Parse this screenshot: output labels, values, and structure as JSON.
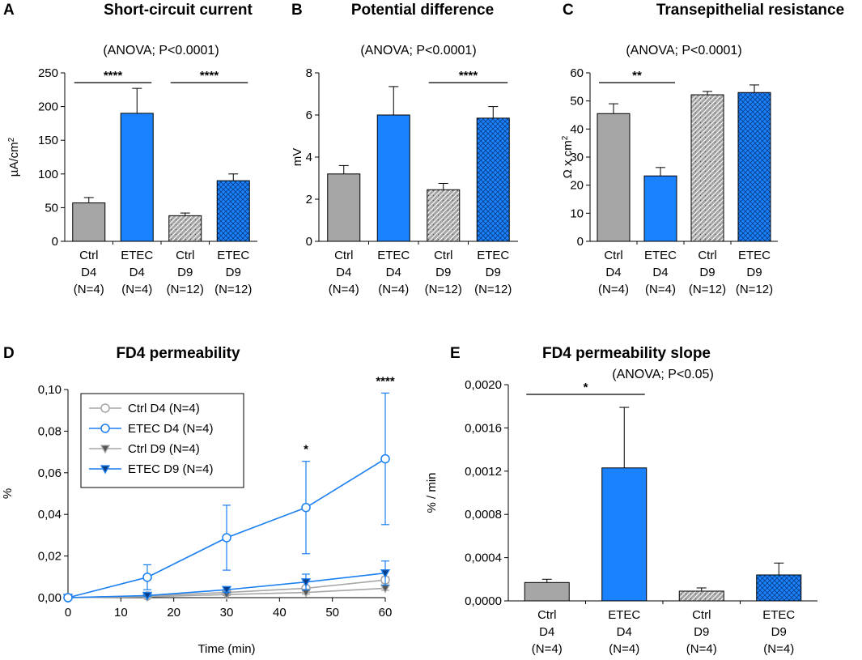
{
  "colors": {
    "ctrl": "#a6a6a6",
    "etec": "#1a82ff",
    "ctrl_line": "#a6a6a6",
    "etec_line": "#1a7ff0",
    "dark": "#2b2b2b"
  },
  "chart_data": [
    {
      "id": "A",
      "panel_label": "A",
      "type": "bar",
      "title": "Short-circuit current",
      "annotation": "(ANOVA; P<0.0001)",
      "ylabel": "µA/cm",
      "ylabel_sup": "2",
      "ylim": [
        0,
        250
      ],
      "yticks": [
        "0",
        "50",
        "100",
        "150",
        "200",
        "250"
      ],
      "yticks_values": [
        0,
        50,
        100,
        150,
        200,
        250
      ],
      "categories": [
        [
          "Ctrl",
          "D4",
          "(N=4)"
        ],
        [
          "ETEC",
          "D4",
          "(N=4)"
        ],
        [
          "Ctrl",
          "D9",
          "(N=12)"
        ],
        [
          "ETEC",
          "D9",
          "(N=12)"
        ]
      ],
      "values": [
        57,
        190,
        38,
        90
      ],
      "errors": [
        8,
        37,
        4,
        10
      ],
      "fill": [
        "solid-gray",
        "solid-blue",
        "pattern-gray",
        "pattern-blue"
      ],
      "significance": [
        {
          "from": 0,
          "to": 1,
          "label": "****"
        },
        {
          "from": 2,
          "to": 3,
          "label": "****"
        }
      ]
    },
    {
      "id": "B",
      "panel_label": "B",
      "type": "bar",
      "title": "Potential difference",
      "annotation": "(ANOVA; P<0.0001)",
      "ylabel": "mV",
      "ylim": [
        0,
        8
      ],
      "yticks": [
        "0",
        "2",
        "4",
        "6",
        "8"
      ],
      "yticks_values": [
        0,
        2,
        4,
        6,
        8
      ],
      "categories": [
        [
          "Ctrl",
          "D4",
          "(N=4)"
        ],
        [
          "ETEC",
          "D4",
          "(N=4)"
        ],
        [
          "Ctrl",
          "D9",
          "(N=12)"
        ],
        [
          "ETEC",
          "D9",
          "(N=12)"
        ]
      ],
      "values": [
        3.2,
        6.0,
        2.45,
        5.85
      ],
      "errors": [
        0.4,
        1.35,
        0.3,
        0.55
      ],
      "fill": [
        "solid-gray",
        "solid-blue",
        "pattern-gray",
        "pattern-blue"
      ],
      "significance": [
        {
          "from": 2,
          "to": 3,
          "label": "****"
        }
      ]
    },
    {
      "id": "C",
      "panel_label": "C",
      "type": "bar",
      "title": "Transepithelial resistance",
      "annotation": "(ANOVA; P<0.0001)",
      "ylabel": "Ω x cm",
      "ylabel_sup": "2",
      "ylim": [
        0,
        60
      ],
      "yticks": [
        "0",
        "10",
        "20",
        "30",
        "40",
        "50",
        "60"
      ],
      "yticks_values": [
        0,
        10,
        20,
        30,
        40,
        50,
        60
      ],
      "categories": [
        [
          "Ctrl",
          "D4",
          "(N=4)"
        ],
        [
          "ETEC",
          "D4",
          "(N=4)"
        ],
        [
          "Ctrl",
          "D9",
          "(N=12)"
        ],
        [
          "ETEC",
          "D9",
          "(N=12)"
        ]
      ],
      "values": [
        45.5,
        23.3,
        52.2,
        53.0
      ],
      "errors": [
        3.5,
        3.0,
        1.2,
        2.7
      ],
      "fill": [
        "solid-gray",
        "solid-blue",
        "pattern-gray",
        "pattern-blue"
      ],
      "significance": [
        {
          "from": 0,
          "to": 1,
          "label": "**"
        }
      ]
    },
    {
      "id": "D",
      "panel_label": "D",
      "type": "line",
      "title": "FD4 permeability",
      "xlabel": "Time (min)",
      "ylabel": "%",
      "xlim": [
        0,
        60
      ],
      "ylim": [
        0,
        0.1
      ],
      "xticks": [
        "0",
        "10",
        "20",
        "30",
        "40",
        "50",
        "60"
      ],
      "xticks_values": [
        0,
        10,
        20,
        30,
        40,
        50,
        60
      ],
      "yticks": [
        "0,00",
        "0,02",
        "0,04",
        "0,06",
        "0,08",
        "0,10"
      ],
      "yticks_values": [
        0,
        0.02,
        0.04,
        0.06,
        0.08,
        0.1
      ],
      "x": [
        0,
        15,
        30,
        45,
        60
      ],
      "series": [
        {
          "name": "Ctrl D4 (N=4)",
          "marker": "circle",
          "color": "#a6a6a6",
          "values": [
            0,
            0.0008,
            0.0025,
            0.0045,
            0.0085
          ],
          "errors": [
            0,
            0.0004,
            0.0008,
            0.001,
            0.0015
          ]
        },
        {
          "name": "ETEC D4 (N=4)",
          "marker": "circle",
          "color": "#1a7ff0",
          "values": [
            0,
            0.0098,
            0.0288,
            0.0433,
            0.0667
          ],
          "errors": [
            0,
            0.006,
            0.0156,
            0.0222,
            0.0316
          ]
        },
        {
          "name": "Ctrl D9 (N=4)",
          "marker": "triangle-down",
          "color": "#a6a6a6",
          "values": [
            0,
            0.0004,
            0.0015,
            0.0025,
            0.0045
          ],
          "errors": [
            0,
            0.0003,
            0.0005,
            0.0008,
            0.001
          ]
        },
        {
          "name": "ETEC D9 (N=4)",
          "marker": "triangle-down",
          "color": "#1a7ff0",
          "values": [
            0,
            0.001,
            0.0038,
            0.0075,
            0.0118
          ],
          "errors": [
            0,
            0.0005,
            0.0012,
            0.0038,
            0.0058
          ]
        }
      ],
      "significance": [
        {
          "x": 45,
          "label": "*"
        },
        {
          "x": 60,
          "label": "****"
        }
      ],
      "legend_position": "upper-left"
    },
    {
      "id": "E",
      "panel_label": "E",
      "type": "bar",
      "title": "FD4 permeability slope",
      "annotation": "(ANOVA; P<0.05)",
      "ylabel": "% / min",
      "ylim": [
        0,
        0.002
      ],
      "yticks": [
        "0,0000",
        "0,0004",
        "0,0008",
        "0,0012",
        "0,0016",
        "0,0020"
      ],
      "yticks_values": [
        0,
        0.0004,
        0.0008,
        0.0012,
        0.0016,
        0.002
      ],
      "categories": [
        [
          "Ctrl",
          "D4",
          "(N=4)"
        ],
        [
          "ETEC",
          "D4",
          "(N=4)"
        ],
        [
          "Ctrl",
          "D9",
          "(N=4)"
        ],
        [
          "ETEC",
          "D9",
          "(N=4)"
        ]
      ],
      "values": [
        0.00017,
        0.00123,
        9e-05,
        0.00024
      ],
      "errors": [
        3e-05,
        0.00056,
        3e-05,
        0.00011
      ],
      "fill": [
        "solid-gray",
        "solid-blue",
        "pattern-gray",
        "pattern-blue"
      ],
      "significance": [
        {
          "from": 0,
          "to": 1,
          "label": "*"
        }
      ]
    }
  ]
}
